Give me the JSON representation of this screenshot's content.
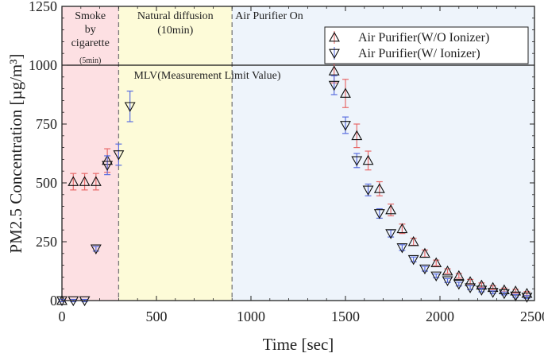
{
  "chart_data": {
    "type": "scatter",
    "title": "",
    "xlabel": "Time [sec]",
    "ylabel": "PM2.5 Concentration [µg/m³]",
    "xlim": [
      0,
      2500
    ],
    "ylim": [
      0,
      1250
    ],
    "x_ticks": [
      0,
      500,
      1000,
      1500,
      2000,
      2500
    ],
    "y_ticks": [
      0,
      250,
      500,
      750,
      1000,
      1250
    ],
    "x_tick_labels": [
      "0",
      "500",
      "1000",
      "1500",
      "2000",
      "2500"
    ],
    "y_tick_labels": [
      "0",
      "250",
      "500",
      "750",
      "1000",
      "1250"
    ],
    "grid": false,
    "legend_position": "top-right",
    "phases": [
      {
        "label_lines": [
          "Smoke",
          "by",
          "cigarette"
        ],
        "sub_label": "(5min)",
        "start": 0,
        "end": 300,
        "color": "#fde0e3"
      },
      {
        "label_lines": [
          "Natural diffusion"
        ],
        "sub_label": "(10min)",
        "start": 300,
        "end": 900,
        "color": "#fdfbd8"
      },
      {
        "label_lines": [
          "Air Purifier On"
        ],
        "sub_label": "",
        "start": 900,
        "end": 2500,
        "color": "#eef4fb"
      }
    ],
    "reference_line": {
      "label": "MLV(Measurement Limit Value)",
      "y": 1000
    },
    "series": [
      {
        "name": "Air Purifier(W/O Ionizer)",
        "marker": "triangle-up",
        "error_color": "#e86a6a",
        "x": [
          0,
          60,
          120,
          180,
          240,
          1440,
          1500,
          1560,
          1620,
          1680,
          1740,
          1800,
          1860,
          1920,
          1980,
          2040,
          2100,
          2160,
          2220,
          2280,
          2340,
          2400,
          2460
        ],
        "y": [
          0,
          505,
          505,
          505,
          595,
          975,
          880,
          700,
          595,
          475,
          385,
          305,
          250,
          200,
          160,
          125,
          105,
          80,
          65,
          55,
          45,
          40,
          30
        ],
        "err": [
          5,
          35,
          35,
          35,
          50,
          50,
          60,
          50,
          40,
          30,
          25,
          20,
          15,
          15,
          12,
          10,
          10,
          10,
          10,
          8,
          8,
          8,
          8
        ]
      },
      {
        "name": "Air Purifier(W/ Ionizer)",
        "marker": "triangle-down",
        "error_color": "#5a6ee0",
        "x": [
          0,
          60,
          120,
          180,
          240,
          300,
          360,
          1440,
          1500,
          1560,
          1620,
          1680,
          1740,
          1800,
          1860,
          1920,
          1980,
          2040,
          2100,
          2160,
          2220,
          2280,
          2340,
          2400,
          2460
        ],
        "y": [
          0,
          0,
          0,
          220,
          575,
          620,
          825,
          915,
          745,
          595,
          470,
          370,
          285,
          225,
          175,
          135,
          105,
          85,
          70,
          55,
          45,
          35,
          30,
          20,
          15
        ],
        "err": [
          5,
          5,
          5,
          10,
          40,
          45,
          65,
          40,
          35,
          30,
          25,
          20,
          15,
          12,
          10,
          10,
          8,
          8,
          8,
          8,
          8,
          6,
          6,
          6,
          6
        ]
      }
    ]
  }
}
